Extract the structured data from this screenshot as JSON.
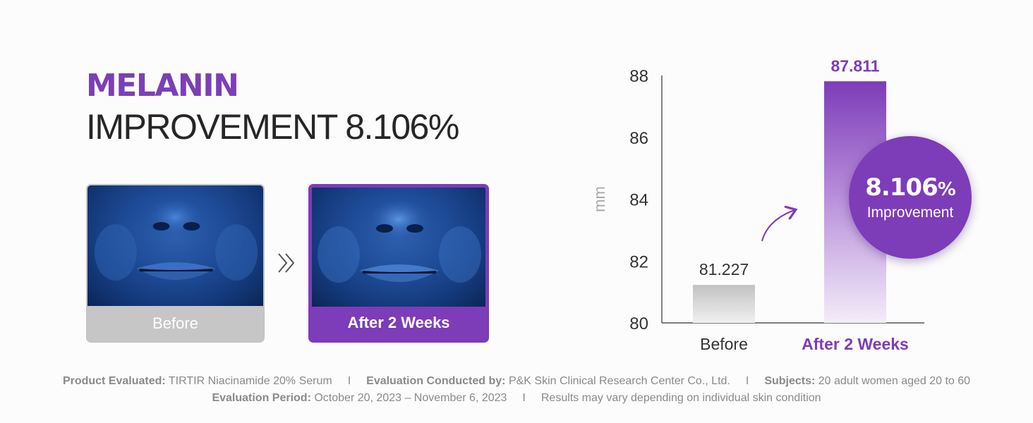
{
  "headline": {
    "accent": "MELANIN",
    "sub": "IMPROVEMENT 8.106%"
  },
  "photos": {
    "before_label": "Before",
    "after_label": "After 2 Weeks"
  },
  "icons": {
    "between": "double-chevron-right-icon",
    "trend": "curved-arrow-up-icon"
  },
  "callout": {
    "value": "8.106",
    "symbol": "%",
    "label": "Improvement"
  },
  "colors": {
    "accent": "#7d3cb8",
    "before_bar": "#c6c6c6",
    "text": "#262626",
    "muted": "#8a8a8a"
  },
  "chart_data": {
    "type": "bar",
    "categories": [
      "Before",
      "After 2 Weeks"
    ],
    "values": [
      81.227,
      87.811
    ],
    "value_labels": [
      "81.227",
      "87.811"
    ],
    "ylabel": "mm",
    "ylim": [
      80,
      88
    ],
    "yticks": [
      80,
      82,
      84,
      86,
      88
    ],
    "grid": false,
    "legend": "none"
  },
  "footer": {
    "line1": [
      {
        "key": "Product Evaluated:",
        "value": "TIRTIR Niacinamide 20% Serum"
      },
      {
        "key": "Evaluation Conducted by:",
        "value": "P&K Skin Clinical Research Center Co., Ltd."
      },
      {
        "key": "Subjects:",
        "value": "20 adult women aged 20 to 60"
      }
    ],
    "line2": [
      {
        "key": "Evaluation Period:",
        "value": "October 20, 2023 – November 6, 2023"
      },
      {
        "key": "",
        "value": "Results may vary depending on individual skin condition"
      }
    ],
    "separator": "I"
  }
}
